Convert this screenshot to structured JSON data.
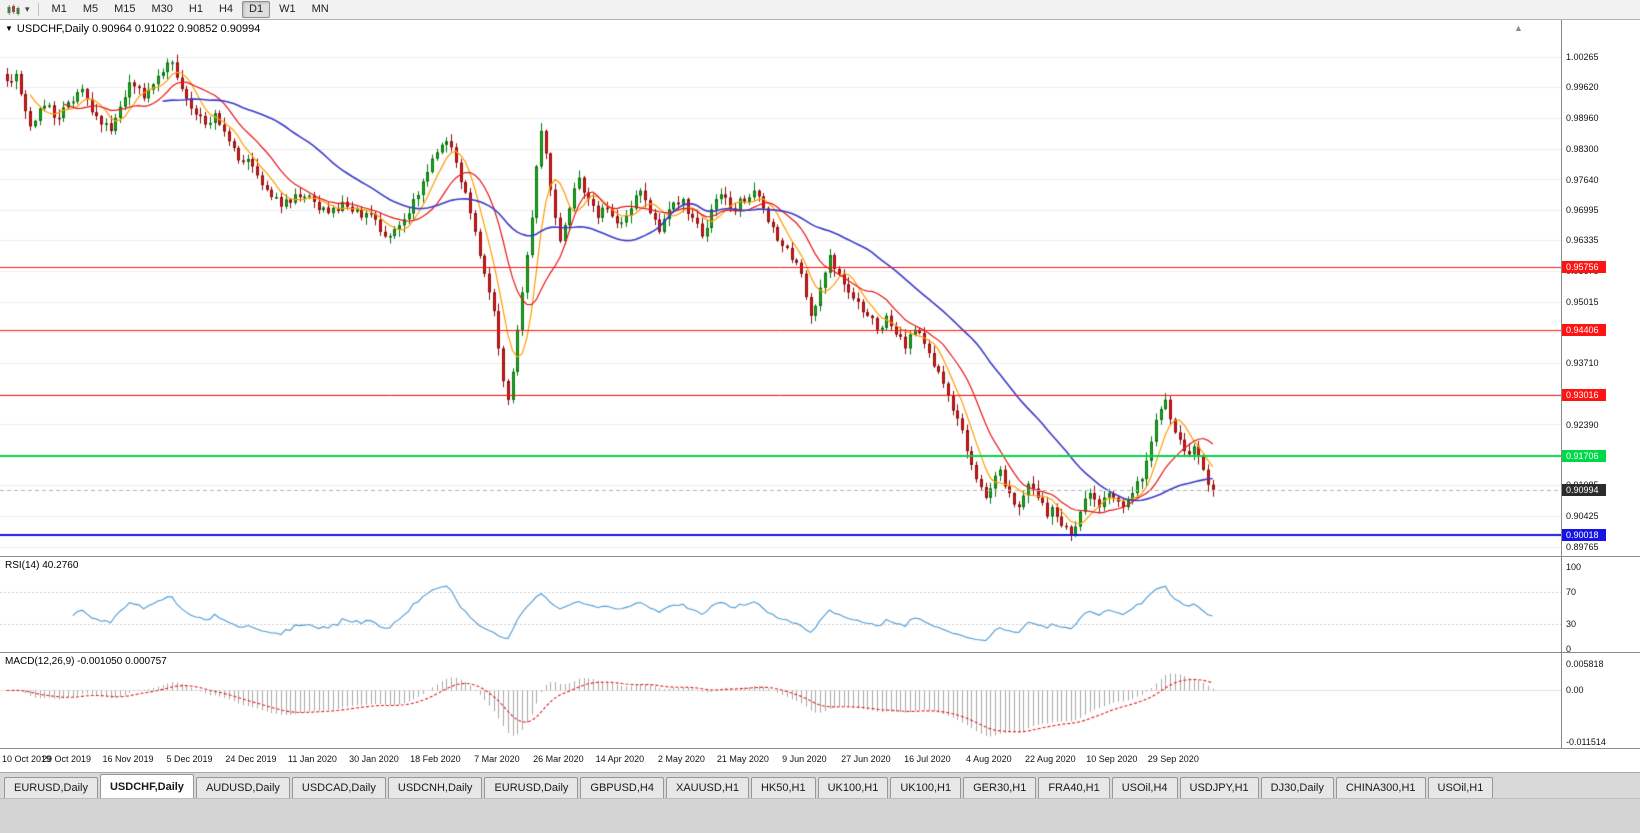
{
  "toolbar": {
    "timeframes": [
      "M1",
      "M5",
      "M15",
      "M30",
      "H1",
      "H4",
      "D1",
      "W1",
      "MN"
    ],
    "active_timeframe": "D1"
  },
  "icons": {
    "collapse": "▼",
    "caret_down": "▾",
    "chart_shift": "▲",
    "chart_type": "candlestick-chart-icon"
  },
  "chart": {
    "header_text": "USDCHF,Daily 0.90964 0.91022 0.90852 0.90994",
    "symbol": "USDCHF",
    "timeframe": "Daily",
    "price_axis_ticks": [
      "1.00265",
      "0.99620",
      "0.98960",
      "0.98300",
      "0.97640",
      "0.96995",
      "0.96335",
      "0.95675",
      "0.95015",
      "0.94370",
      "0.93710",
      "0.93050",
      "0.92390",
      "0.91745",
      "0.91085",
      "0.90425",
      "0.89765"
    ]
  },
  "indicators": {
    "rsi": {
      "header": "RSI(14) 40.2760"
    },
    "macd": {
      "header": "MACD(12,26,9) -0.001050 0.000757"
    }
  },
  "date_axis": {
    "labels": [
      "10 Oct 2019",
      "29 Oct 2019",
      "16 Nov 2019",
      "5 Dec 2019",
      "24 Dec 2019",
      "11 Jan 2020",
      "30 Jan 2020",
      "18 Feb 2020",
      "7 Mar 2020",
      "26 Mar 2020",
      "14 Apr 2020",
      "2 May 2020",
      "21 May 2020",
      "9 Jun 2020",
      "27 Jun 2020",
      "16 Jul 2020",
      "4 Aug 2020",
      "22 Aug 2020",
      "10 Sep 2020",
      "29 Sep 2020"
    ]
  },
  "tabs": {
    "items": [
      "EURUSD,Daily",
      "USDCHF,Daily",
      "AUDUSD,Daily",
      "USDCAD,Daily",
      "USDCNH,Daily",
      "EURUSD,Daily",
      "GBPUSD,H4",
      "XAUUSD,H1",
      "HK50,H1",
      "UK100,H1",
      "UK100,H1",
      "GER30,H1",
      "FRA40,H1",
      "USOil,H4",
      "USDJPY,H1",
      "DJ30,Daily",
      "CHINA300,H1",
      "USOil,H1"
    ],
    "active_index": 1
  },
  "chart_data": {
    "type": "candlestick",
    "symbol": "USDCHF",
    "timeframe": "Daily",
    "open": 0.90964,
    "high": 0.91022,
    "low": 0.90852,
    "close": 0.90994,
    "visible_price_range": [
      0.89765,
      1.00265
    ],
    "num_candles": 256,
    "candle_colors": {
      "up": "#17b21b",
      "down": "#e21717"
    },
    "close_anchors": [
      [
        0,
        0.9975
      ],
      [
        2,
        0.999
      ],
      [
        5,
        0.9878
      ],
      [
        8,
        0.9922
      ],
      [
        11,
        0.9896
      ],
      [
        13,
        0.993
      ],
      [
        16,
        0.9958
      ],
      [
        19,
        0.99
      ],
      [
        22,
        0.9868
      ],
      [
        24,
        0.992
      ],
      [
        26,
        0.9972
      ],
      [
        29,
        0.9938
      ],
      [
        32,
        0.9986
      ],
      [
        35,
        1.0015
      ],
      [
        37,
        0.9958
      ],
      [
        39,
        0.9916
      ],
      [
        42,
        0.9882
      ],
      [
        44,
        0.9906
      ],
      [
        47,
        0.9846
      ],
      [
        50,
        0.9802
      ],
      [
        52,
        0.9792
      ],
      [
        55,
        0.9742
      ],
      [
        58,
        0.9706
      ],
      [
        61,
        0.9732
      ],
      [
        65,
        0.9716
      ],
      [
        68,
        0.9692
      ],
      [
        71,
        0.9716
      ],
      [
        74,
        0.97
      ],
      [
        78,
        0.9678
      ],
      [
        80,
        0.9642
      ],
      [
        83,
        0.9666
      ],
      [
        86,
        0.9722
      ],
      [
        89,
        0.978
      ],
      [
        91,
        0.9822
      ],
      [
        93,
        0.9846
      ],
      [
        95,
        0.98
      ],
      [
        97,
        0.9736
      ],
      [
        99,
        0.9652
      ],
      [
        101,
        0.9562
      ],
      [
        103,
        0.9482
      ],
      [
        104,
        0.9402
      ],
      [
        105,
        0.9332
      ],
      [
        106,
        0.9292
      ],
      [
        107,
        0.9352
      ],
      [
        108,
        0.9442
      ],
      [
        109,
        0.9522
      ],
      [
        110,
        0.9602
      ],
      [
        111,
        0.9682
      ],
      [
        112,
        0.9792
      ],
      [
        113,
        0.9868
      ],
      [
        114,
        0.982
      ],
      [
        115,
        0.9742
      ],
      [
        116,
        0.9682
      ],
      [
        117,
        0.9632
      ],
      [
        119,
        0.9702
      ],
      [
        121,
        0.9768
      ],
      [
        123,
        0.9722
      ],
      [
        125,
        0.9682
      ],
      [
        127,
        0.9702
      ],
      [
        130,
        0.9672
      ],
      [
        132,
        0.9702
      ],
      [
        134,
        0.974
      ],
      [
        136,
        0.9692
      ],
      [
        138,
        0.9652
      ],
      [
        140,
        0.97
      ],
      [
        143,
        0.9722
      ],
      [
        145,
        0.9682
      ],
      [
        147,
        0.9642
      ],
      [
        149,
        0.97
      ],
      [
        151,
        0.9732
      ],
      [
        153,
        0.9702
      ],
      [
        156,
        0.9716
      ],
      [
        158,
        0.974
      ],
      [
        160,
        0.9702
      ],
      [
        162,
        0.9662
      ],
      [
        164,
        0.9622
      ],
      [
        166,
        0.9592
      ],
      [
        168,
        0.9562
      ],
      [
        169,
        0.9512
      ],
      [
        170,
        0.9472
      ],
      [
        172,
        0.9532
      ],
      [
        174,
        0.9602
      ],
      [
        176,
        0.9562
      ],
      [
        178,
        0.9522
      ],
      [
        180,
        0.9502
      ],
      [
        182,
        0.9472
      ],
      [
        184,
        0.9442
      ],
      [
        186,
        0.9472
      ],
      [
        188,
        0.9432
      ],
      [
        190,
        0.9402
      ],
      [
        192,
        0.9442
      ],
      [
        194,
        0.9412
      ],
      [
        195,
        0.9392
      ],
      [
        197,
        0.9352
      ],
      [
        199,
        0.9302
      ],
      [
        201,
        0.9252
      ],
      [
        203,
        0.9182
      ],
      [
        205,
        0.9122
      ],
      [
        207,
        0.9082
      ],
      [
        208,
        0.9102
      ],
      [
        210,
        0.9142
      ],
      [
        212,
        0.9092
      ],
      [
        214,
        0.9062
      ],
      [
        216,
        0.9112
      ],
      [
        218,
        0.9082
      ],
      [
        220,
        0.9042
      ],
      [
        221,
        0.9062
      ],
      [
        223,
        0.9022
      ],
      [
        225,
        0.9002
      ],
      [
        227,
        0.9052
      ],
      [
        229,
        0.9092
      ],
      [
        231,
        0.9062
      ],
      [
        233,
        0.9092
      ],
      [
        234,
        0.9082
      ],
      [
        236,
        0.9062
      ],
      [
        238,
        0.9092
      ],
      [
        240,
        0.9122
      ],
      [
        242,
        0.9202
      ],
      [
        244,
        0.9272
      ],
      [
        245,
        0.9292
      ],
      [
        247,
        0.9222
      ],
      [
        249,
        0.9182
      ],
      [
        251,
        0.9192
      ],
      [
        253,
        0.9142
      ],
      [
        255,
        0.90994
      ]
    ],
    "moving_averages": [
      {
        "name": "fast",
        "period": 6,
        "color": "#ff9c00"
      },
      {
        "name": "medium",
        "period": 13,
        "color": "#e81717"
      },
      {
        "name": "slow",
        "period": 34,
        "color": "#3a3ac8"
      }
    ],
    "horizontal_lines": [
      {
        "price": 0.95756,
        "color": "#ff1414",
        "width": 1,
        "type": "resistance"
      },
      {
        "price": 0.94406,
        "color": "#ff1414",
        "width": 1,
        "type": "resistance"
      },
      {
        "price": 0.93016,
        "color": "#ff1414",
        "width": 1,
        "type": "resistance"
      },
      {
        "price": 0.91706,
        "color": "#00d84a",
        "width": 2,
        "type": "support"
      },
      {
        "price": 0.90018,
        "color": "#1414e6",
        "width": 2,
        "type": "support"
      }
    ],
    "current_price": 0.90994,
    "current_price_badge_color": "#2b2b2b",
    "rsi": {
      "period": 14,
      "last_value": 40.276,
      "color": "#4f9bd5",
      "scale_labels": [
        "100",
        "70",
        "30",
        "0"
      ],
      "level_lines": [
        70,
        30
      ],
      "range": [
        0,
        100
      ]
    },
    "macd": {
      "fast": 12,
      "slow": 26,
      "signal": 9,
      "last_main": -0.00105,
      "last_signal": 0.000757,
      "scale_labels": [
        "0.005818",
        "0.00",
        "-0.011514"
      ],
      "histogram_color": "#a8a8a8",
      "signal_color": "#e02020"
    }
  }
}
